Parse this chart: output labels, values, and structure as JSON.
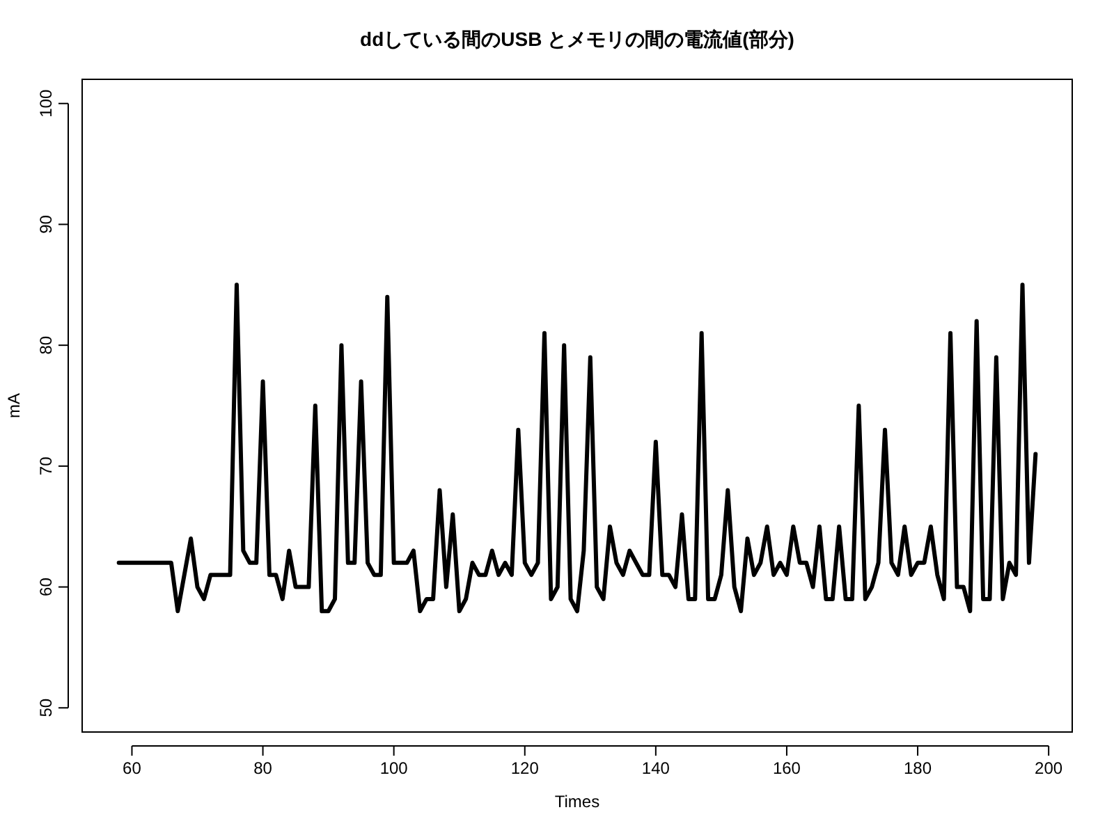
{
  "chart_data": {
    "type": "line",
    "title": "ddしている間のUSB とメモリの間の電流値(部分)",
    "xlabel": "Times",
    "ylabel": "mA",
    "x": [
      58,
      59,
      60,
      61,
      62,
      63,
      64,
      65,
      66,
      67,
      68,
      69,
      70,
      71,
      72,
      73,
      74,
      75,
      76,
      77,
      78,
      79,
      80,
      81,
      82,
      83,
      84,
      85,
      86,
      87,
      88,
      89,
      90,
      91,
      92,
      93,
      94,
      95,
      96,
      97,
      98,
      99,
      100,
      101,
      102,
      103,
      104,
      105,
      106,
      107,
      108,
      109,
      110,
      111,
      112,
      113,
      114,
      115,
      116,
      117,
      118,
      119,
      120,
      121,
      122,
      123,
      124,
      125,
      126,
      127,
      128,
      129,
      130,
      131,
      132,
      133,
      134,
      135,
      136,
      137,
      138,
      139,
      140,
      141,
      142,
      143,
      144,
      145,
      146,
      147,
      148,
      149,
      150,
      151,
      152,
      153,
      154,
      155,
      156,
      157,
      158,
      159,
      160,
      161,
      162,
      163,
      164,
      165,
      166,
      167,
      168,
      169,
      170,
      171,
      172,
      173,
      174,
      175,
      176,
      177,
      178,
      179,
      180,
      181,
      182,
      183,
      184,
      185,
      186,
      187,
      188,
      189,
      190,
      191,
      192,
      193,
      194,
      195,
      196,
      197,
      198
    ],
    "series": [
      {
        "color": "#000000",
        "values": [
          62,
          62,
          62,
          62,
          62,
          62,
          62,
          62,
          62,
          58,
          61,
          64,
          60,
          59,
          61,
          61,
          61,
          61,
          85,
          63,
          62,
          62,
          77,
          61,
          61,
          59,
          63,
          60,
          60,
          60,
          75,
          58,
          58,
          59,
          80,
          62,
          62,
          77,
          62,
          61,
          61,
          84,
          62,
          62,
          62,
          63,
          58,
          59,
          59,
          68,
          60,
          66,
          58,
          59,
          62,
          61,
          61,
          63,
          61,
          62,
          61,
          73,
          62,
          61,
          62,
          81,
          59,
          60,
          80,
          59,
          58,
          63,
          79,
          60,
          59,
          65,
          62,
          61,
          63,
          62,
          61,
          61,
          72,
          61,
          61,
          60,
          66,
          59,
          59,
          81,
          59,
          59,
          61,
          68,
          60,
          58,
          64,
          61,
          62,
          65,
          61,
          62,
          61,
          65,
          62,
          62,
          60,
          65,
          59,
          59,
          65,
          59,
          59,
          75,
          59,
          60,
          62,
          73,
          62,
          61,
          65,
          61,
          62,
          62,
          65,
          61,
          59,
          81,
          60,
          60,
          58,
          82,
          59,
          59,
          79,
          59,
          62,
          61,
          85,
          62,
          71
        ]
      }
    ],
    "xlim": [
      52.4,
      203.6
    ],
    "ylim": [
      48,
      102
    ],
    "xticks": [
      60,
      80,
      100,
      120,
      140,
      160,
      180,
      200
    ],
    "yticks": [
      50,
      60,
      70,
      80,
      90,
      100
    ],
    "grid": false,
    "marker": "none",
    "line_style": "solid"
  }
}
